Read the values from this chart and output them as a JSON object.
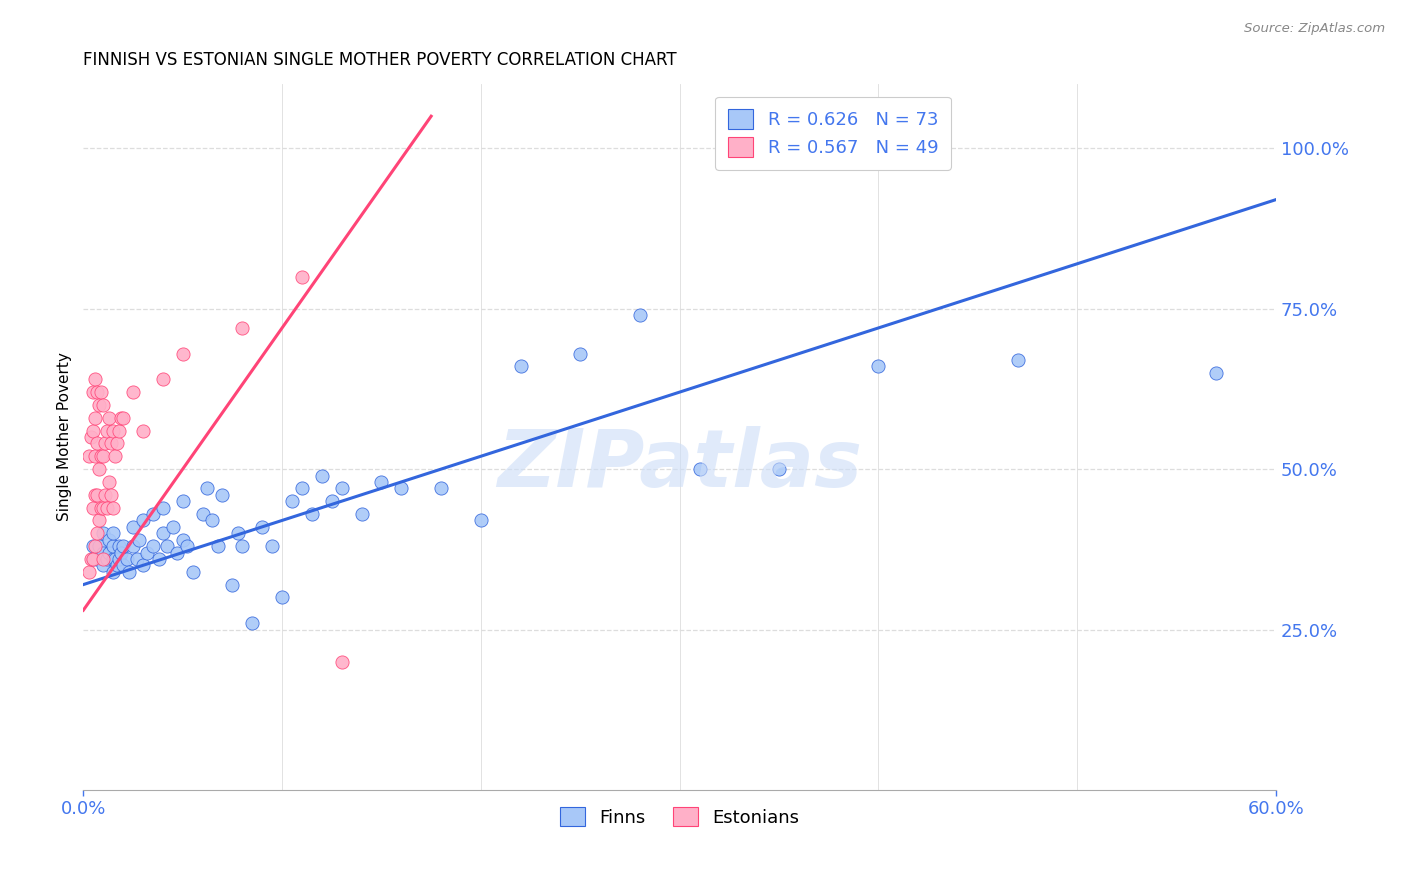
{
  "title": "FINNISH VS ESTONIAN SINGLE MOTHER POVERTY CORRELATION CHART",
  "source": "Source: ZipAtlas.com",
  "ylabel": "Single Mother Poverty",
  "right_yticks": [
    "25.0%",
    "50.0%",
    "75.0%",
    "100.0%"
  ],
  "right_ytick_vals": [
    0.25,
    0.5,
    0.75,
    1.0
  ],
  "xlim": [
    0.0,
    0.6
  ],
  "ylim": [
    0.0,
    1.1
  ],
  "finn_color": "#a8c8f8",
  "estonian_color": "#ffb0c8",
  "finn_line_color": "#3366dd",
  "estonian_line_color": "#ff4477",
  "watermark": "ZIPatlas",
  "legend_finn_R": "R = 0.626",
  "legend_finn_N": "N = 73",
  "legend_est_R": "R = 0.567",
  "legend_est_N": "N = 49",
  "finn_trend_x0": 0.0,
  "finn_trend_x1": 0.6,
  "finn_trend_y0": 0.32,
  "finn_trend_y1": 0.92,
  "est_trend_x0": 0.0,
  "est_trend_x1": 0.175,
  "est_trend_y0": 0.28,
  "est_trend_y1": 1.05,
  "finns_x": [
    0.005,
    0.005,
    0.007,
    0.008,
    0.01,
    0.01,
    0.01,
    0.012,
    0.013,
    0.013,
    0.015,
    0.015,
    0.015,
    0.015,
    0.016,
    0.017,
    0.018,
    0.018,
    0.019,
    0.02,
    0.02,
    0.022,
    0.023,
    0.025,
    0.025,
    0.027,
    0.028,
    0.03,
    0.03,
    0.032,
    0.035,
    0.035,
    0.038,
    0.04,
    0.04,
    0.042,
    0.045,
    0.047,
    0.05,
    0.05,
    0.052,
    0.055,
    0.06,
    0.062,
    0.065,
    0.068,
    0.07,
    0.075,
    0.078,
    0.08,
    0.085,
    0.09,
    0.095,
    0.1,
    0.105,
    0.11,
    0.115,
    0.12,
    0.125,
    0.13,
    0.14,
    0.15,
    0.16,
    0.18,
    0.2,
    0.22,
    0.25,
    0.28,
    0.31,
    0.35,
    0.4,
    0.47,
    0.57
  ],
  "finns_y": [
    0.36,
    0.38,
    0.36,
    0.38,
    0.35,
    0.37,
    0.4,
    0.36,
    0.37,
    0.39,
    0.34,
    0.36,
    0.38,
    0.4,
    0.36,
    0.35,
    0.36,
    0.38,
    0.37,
    0.35,
    0.38,
    0.36,
    0.34,
    0.38,
    0.41,
    0.36,
    0.39,
    0.35,
    0.42,
    0.37,
    0.38,
    0.43,
    0.36,
    0.4,
    0.44,
    0.38,
    0.41,
    0.37,
    0.39,
    0.45,
    0.38,
    0.34,
    0.43,
    0.47,
    0.42,
    0.38,
    0.46,
    0.32,
    0.4,
    0.38,
    0.26,
    0.41,
    0.38,
    0.3,
    0.45,
    0.47,
    0.43,
    0.49,
    0.45,
    0.47,
    0.43,
    0.48,
    0.47,
    0.47,
    0.42,
    0.66,
    0.68,
    0.74,
    0.5,
    0.5,
    0.66,
    0.67,
    0.65
  ],
  "estonians_x": [
    0.003,
    0.003,
    0.004,
    0.004,
    0.005,
    0.005,
    0.005,
    0.005,
    0.006,
    0.006,
    0.006,
    0.006,
    0.006,
    0.007,
    0.007,
    0.007,
    0.007,
    0.008,
    0.008,
    0.008,
    0.009,
    0.009,
    0.009,
    0.01,
    0.01,
    0.01,
    0.01,
    0.011,
    0.011,
    0.012,
    0.012,
    0.013,
    0.013,
    0.014,
    0.014,
    0.015,
    0.015,
    0.016,
    0.017,
    0.018,
    0.019,
    0.02,
    0.025,
    0.03,
    0.04,
    0.05,
    0.08,
    0.11,
    0.13
  ],
  "estonians_y": [
    0.34,
    0.52,
    0.36,
    0.55,
    0.36,
    0.44,
    0.56,
    0.62,
    0.38,
    0.46,
    0.52,
    0.58,
    0.64,
    0.4,
    0.46,
    0.54,
    0.62,
    0.42,
    0.5,
    0.6,
    0.44,
    0.52,
    0.62,
    0.36,
    0.44,
    0.52,
    0.6,
    0.46,
    0.54,
    0.44,
    0.56,
    0.48,
    0.58,
    0.46,
    0.54,
    0.44,
    0.56,
    0.52,
    0.54,
    0.56,
    0.58,
    0.58,
    0.62,
    0.56,
    0.64,
    0.68,
    0.72,
    0.8,
    0.2
  ],
  "grid_color": "#dddddd",
  "axis_color": "#aaaaaa",
  "tick_color_blue": "#4477ee",
  "watermark_color": "#ccddf8",
  "watermark_alpha": 0.6
}
